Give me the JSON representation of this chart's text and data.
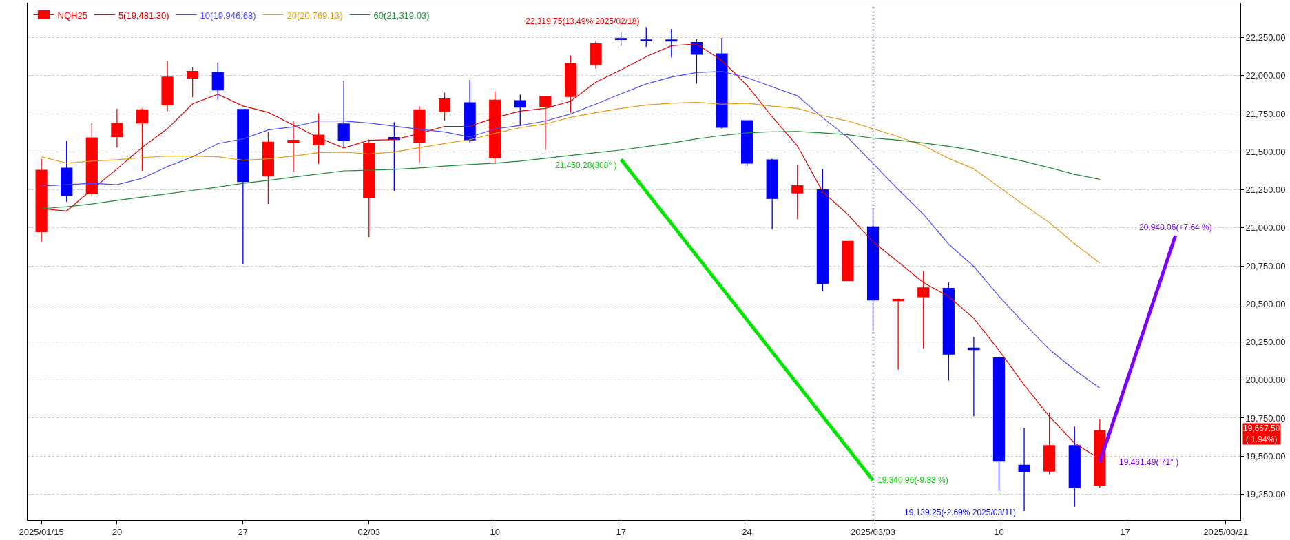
{
  "chart_data": {
    "type": "candlestick",
    "categories": [
      "2025/01/15",
      null,
      null,
      "20",
      null,
      null,
      null,
      null,
      "27",
      null,
      null,
      null,
      null,
      "02/03",
      null,
      null,
      null,
      null,
      "10",
      null,
      null,
      null,
      null,
      "17",
      null,
      null,
      null,
      null,
      "24",
      null,
      null,
      null,
      null,
      "2025/03/03",
      null,
      null,
      null,
      null,
      "10",
      null,
      null,
      null,
      null,
      "17",
      null,
      null,
      null,
      "2025/03/21"
    ],
    "series": [
      {
        "name": "NQH25",
        "color": "#ff0000",
        "colors": [
          "#ff0000",
          "#0000ff",
          "#ff0000",
          "#ff0000",
          "#ff0000",
          "#ff0000",
          "#ff0000",
          "#0000ff",
          "#0000ff",
          "#ff0000",
          "#ff0000",
          "#ff0000",
          "#0000ff",
          "#ff0000",
          "#0000ff",
          "#ff0000",
          "#ff0000",
          "#0000ff",
          "#ff0000",
          "#0000ff",
          "#ff0000",
          "#ff0000",
          "#ff0000",
          "#0000ff",
          "#0000ff",
          "#0000ff",
          "#0000ff",
          "#0000ff",
          "#0000ff",
          "#0000ff",
          "#ff0000",
          "#0000ff",
          "#ff0000",
          "#0000ff",
          "#ff0000",
          "#ff0000",
          "#0000ff",
          "#0000ff",
          "#0000ff",
          "#0000ff",
          "#ff0000",
          "#0000ff",
          "#ff0000",
          null,
          null,
          null,
          null,
          null
        ],
        "ohlc": [
          [
            20975,
            21454,
            20907,
            21379
          ],
          [
            21392,
            21572,
            21171,
            21213
          ],
          [
            21224,
            21687,
            21206,
            21592
          ],
          [
            21600,
            21782,
            21528,
            21687
          ],
          [
            21689,
            21785,
            21375,
            21776
          ],
          [
            21809,
            22099,
            21767,
            21991
          ],
          [
            21984,
            22055,
            21858,
            22028
          ],
          [
            22022,
            22086,
            21844,
            21907
          ],
          [
            21778,
            21778,
            20761,
            21304
          ],
          [
            21341,
            21629,
            21157,
            21563
          ],
          [
            21559,
            21700,
            21370,
            21576
          ],
          [
            21547,
            21753,
            21421,
            21610
          ],
          [
            21683,
            21968,
            21530,
            21574
          ],
          [
            21197,
            21581,
            20938,
            21558
          ],
          [
            21594,
            21694,
            21242,
            21581
          ],
          [
            21563,
            21798,
            21430,
            21776
          ],
          [
            21765,
            21889,
            21705,
            21847
          ],
          [
            21822,
            21973,
            21558,
            21578
          ],
          [
            21461,
            21898,
            21421,
            21840
          ],
          [
            21836,
            21876,
            21672,
            21793
          ],
          [
            21796,
            21870,
            21512,
            21866
          ],
          [
            21864,
            22132,
            21756,
            22081
          ],
          [
            22073,
            22232,
            22046,
            22210
          ],
          [
            22245,
            22286,
            22195,
            22238
          ],
          [
            22235,
            22319.75,
            22190,
            22230
          ],
          [
            22235,
            22308,
            22122,
            22228
          ],
          [
            22219,
            22241,
            21949,
            22141
          ],
          [
            22144,
            22250,
            21652,
            21661
          ],
          [
            21705,
            21705,
            21406,
            21425
          ],
          [
            21447,
            21454,
            20989,
            21193
          ],
          [
            21230,
            21412,
            21057,
            21277
          ],
          [
            21250,
            21388,
            20583,
            20634
          ],
          [
            20652,
            20911,
            20652,
            20911
          ],
          [
            21006,
            21131,
            20320,
            20526
          ],
          [
            20521,
            20535,
            20068,
            20530
          ],
          [
            20547,
            20718,
            20208,
            20606
          ],
          [
            20602,
            20642,
            19996,
            20170
          ],
          [
            20210,
            20283,
            19761,
            20200
          ],
          [
            20145,
            20154,
            19269,
            19467
          ],
          [
            19440,
            19686,
            19139.25,
            19398
          ],
          [
            19401,
            19786,
            19380,
            19569
          ],
          [
            19569,
            19695,
            19167,
            19291
          ],
          [
            19309,
            19743,
            19291,
            19667.5
          ],
          null,
          null,
          null,
          null,
          null
        ]
      },
      {
        "name": "5(19,481.30)",
        "type": "line",
        "color": "#e00000",
        "values": [
          21126,
          21111,
          21252,
          21388,
          21529,
          21652,
          21815,
          21878,
          21801,
          21759,
          21676,
          21592,
          21525,
          21576,
          21580,
          21620,
          21667,
          21668,
          21724,
          21767,
          21785,
          21832,
          21958,
          22038,
          22125,
          22197,
          22209,
          22100,
          21937,
          21730,
          21539,
          21238,
          21088,
          20908,
          20776,
          20641,
          20549,
          20406,
          20195,
          19968,
          19761,
          19585,
          19481.3,
          null,
          null,
          null,
          null,
          null
        ]
      },
      {
        "name": "10(19,946.68)",
        "type": "line",
        "color": "#4a4aff",
        "values": [
          21275,
          21284,
          21293,
          21284,
          21326,
          21403,
          21467,
          21554,
          21585,
          21644,
          21664,
          21703,
          21702,
          21689,
          21669,
          21648,
          21630,
          21597,
          21650,
          21673,
          21702,
          21749,
          21813,
          21881,
          21946,
          21991,
          22021,
          22029,
          21987,
          21927,
          21868,
          21724,
          21594,
          21423,
          21253,
          21090,
          20893,
          20747,
          20551,
          20372,
          20201,
          20067,
          19946.68,
          null,
          null,
          null,
          null,
          null
        ]
      },
      {
        "name": "20(20,769.13)",
        "type": "line",
        "color": "#e89a10",
        "values": [
          21467,
          21426,
          21439,
          21448,
          21461,
          21472,
          21472,
          21467,
          21445,
          21454,
          21472,
          21494,
          21498,
          21485,
          21499,
          21527,
          21554,
          21580,
          21621,
          21659,
          21683,
          21726,
          21757,
          21785,
          21808,
          21819,
          21825,
          21813,
          21819,
          21800,
          21785,
          21737,
          21703,
          21652,
          21599,
          21541,
          21457,
          21388,
          21269,
          21150,
          21035,
          20895,
          20769.13,
          null,
          null,
          null,
          null,
          null
        ]
      },
      {
        "name": "60(21,319.03)",
        "type": "line",
        "color": "#1f8a3a",
        "values": [
          21126,
          21139,
          21157,
          21181,
          21202,
          21224,
          21246,
          21268,
          21293,
          21312,
          21334,
          21354,
          21375,
          21379,
          21385,
          21394,
          21406,
          21416,
          21425,
          21439,
          21457,
          21476,
          21494,
          21512,
          21534,
          21558,
          21585,
          21607,
          21625,
          21632,
          21634,
          21625,
          21612,
          21590,
          21577,
          21558,
          21536,
          21509,
          21473,
          21437,
          21396,
          21352,
          21319.03,
          null,
          null,
          null,
          null,
          null
        ]
      },
      {
        "type": "line",
        "color": "#00e600",
        "values": [
          null,
          null,
          null,
          null,
          null,
          null,
          null,
          null,
          null,
          null,
          null,
          null,
          null,
          null,
          null,
          null,
          null,
          null,
          null,
          null,
          null,
          null,
          null,
          21450.28,
          null,
          null,
          null,
          null,
          null,
          null,
          null,
          null,
          null,
          19340.96,
          null,
          null,
          null,
          null,
          null,
          null,
          null,
          null,
          null,
          null,
          null,
          null,
          null,
          null
        ]
      },
      {
        "type": "line",
        "color": "#8000ff",
        "values": [
          null,
          null,
          null,
          null,
          null,
          null,
          null,
          null,
          null,
          null,
          null,
          null,
          null,
          null,
          null,
          null,
          null,
          null,
          null,
          null,
          null,
          null,
          null,
          null,
          null,
          null,
          null,
          null,
          null,
          null,
          null,
          null,
          null,
          null,
          null,
          null,
          null,
          null,
          null,
          null,
          null,
          null,
          19461.49,
          null,
          null,
          20948.06,
          null,
          null
        ]
      }
    ],
    "ylim": [
      19080,
      22475
    ],
    "yticks": [
      {
        "value": 19250,
        "label": "19,250.00"
      },
      {
        "value": 19500,
        "label": "19,500.00"
      },
      {
        "value": 19750,
        "label": "19,750.00"
      },
      {
        "value": 20000,
        "label": "20,000.00"
      },
      {
        "value": 20250,
        "label": "20,250.00"
      },
      {
        "value": 20500,
        "label": "20,500.00"
      },
      {
        "value": 20750,
        "label": "20,750.00"
      },
      {
        "value": 21000,
        "label": "21,000.00"
      },
      {
        "value": 21250,
        "label": "21,250.00"
      },
      {
        "value": 21500,
        "label": "21,500.00"
      },
      {
        "value": 21750,
        "label": "21,750.00"
      },
      {
        "value": 22000,
        "label": "22,000.00"
      },
      {
        "value": 22250,
        "label": "22,250.00"
      }
    ],
    "grid": "y",
    "legend": "top left",
    "ref_lines": [
      {
        "axis": "x",
        "value": "2025/03/03",
        "line_style": "dotted",
        "color": "#000099"
      }
    ],
    "annotations": [
      "22,319.75(13.49% 2025/02/18)",
      "21,450.28(308° )",
      "19,340.96(-9.83 %)",
      "19,139.25(-2.69% 2025/03/11)",
      "19,461.49( 71° )",
      "20,948.06(+7.64 %)",
      "19,667.50\n( 1.94%)"
    ]
  }
}
